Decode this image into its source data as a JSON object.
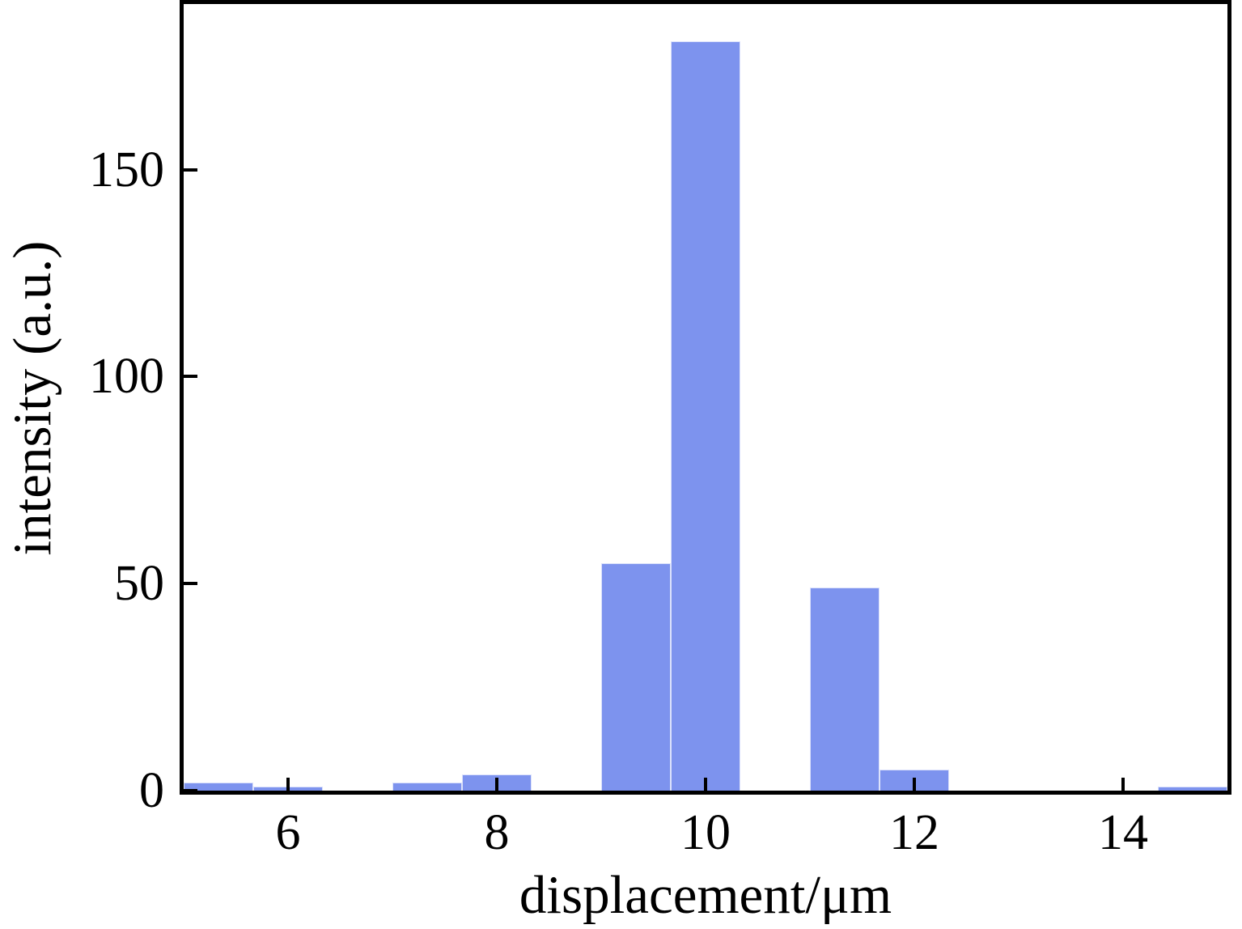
{
  "chart_data": {
    "type": "bar",
    "title": "",
    "xlabel": "displacement/μm",
    "ylabel": "intensity (a.u.)",
    "xlim": [
      5,
      15
    ],
    "ylim": [
      0,
      190
    ],
    "x_ticks": [
      6,
      8,
      10,
      12,
      14
    ],
    "y_ticks": [
      0,
      50,
      100,
      150
    ],
    "grid": false,
    "legend_position": "none",
    "bar_color": "#7d93ee",
    "bar_edge_color": "#dce2fb",
    "axis_color": "#000000",
    "bins": {
      "width": 0.667,
      "starts": [
        5.0,
        5.667,
        6.333,
        7.0,
        7.667,
        8.333,
        9.0,
        9.667,
        10.333,
        11.0,
        11.667,
        12.333,
        13.0,
        13.667,
        14.333
      ],
      "values": [
        2,
        1,
        0,
        2,
        4,
        0,
        55,
        181,
        0,
        49,
        5,
        0,
        0,
        0,
        1
      ]
    }
  }
}
